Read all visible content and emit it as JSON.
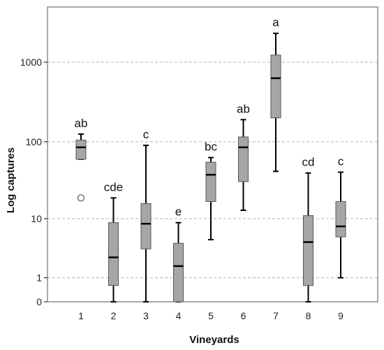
{
  "chart_data": {
    "type": "box",
    "xlabel": "Vineyards",
    "ylabel": "Log captures",
    "y_scale": "log(x+1)",
    "y_ticks": [
      0,
      1,
      10,
      100,
      1000
    ],
    "grid": "horizontal-dashed",
    "categories": [
      "1",
      "2",
      "3",
      "4",
      "5",
      "6",
      "7",
      "8",
      "9"
    ],
    "boxes": [
      {
        "category": "1",
        "min": 60,
        "q1": 60,
        "median": 85,
        "q3": 105,
        "max": 125,
        "outliers": [
          19
        ],
        "letter": "ab"
      },
      {
        "category": "2",
        "min": 0,
        "q1": 0.6,
        "median": 2.6,
        "q3": 8.8,
        "max": 19,
        "outliers": [],
        "letter": "cde"
      },
      {
        "category": "3",
        "min": 0,
        "q1": 3.6,
        "median": 8.5,
        "q3": 16,
        "max": 90,
        "outliers": [],
        "letter": "c"
      },
      {
        "category": "4",
        "min": 0,
        "q1": 0,
        "median": 1.8,
        "q3": 4.4,
        "max": 8.8,
        "outliers": [],
        "letter": "e"
      },
      {
        "category": "5",
        "min": 5,
        "q1": 17,
        "median": 38,
        "q3": 55,
        "max": 63,
        "outliers": [],
        "letter": "bc"
      },
      {
        "category": "6",
        "min": 13,
        "q1": 31,
        "median": 85,
        "q3": 115,
        "max": 190,
        "outliers": [],
        "letter": "ab"
      },
      {
        "category": "7",
        "min": 42,
        "q1": 200,
        "median": 630,
        "q3": 1230,
        "max": 2300,
        "outliers": [],
        "letter": "a"
      },
      {
        "category": "8",
        "min": 0,
        "q1": 0.6,
        "median": 4.6,
        "q3": 11,
        "max": 40,
        "outliers": [],
        "letter": "cd"
      },
      {
        "category": "9",
        "min": 1,
        "q1": 5.5,
        "median": 7.8,
        "q3": 17,
        "max": 41,
        "outliers": [],
        "letter": "c"
      }
    ],
    "colors": {
      "box_fill": "#a6a6a6",
      "box_stroke": "#555555",
      "median": "#000000",
      "whisker": "#000000",
      "grid": "#b3b3b3"
    }
  }
}
